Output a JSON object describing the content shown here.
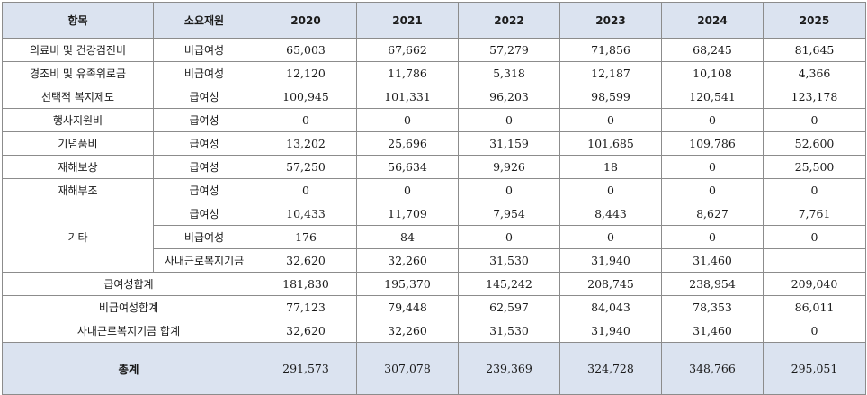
{
  "table": {
    "headers": [
      "항목",
      "소요재원",
      "2020",
      "2021",
      "2022",
      "2023",
      "2024",
      "2025"
    ],
    "rows": [
      {
        "item": "의료비 및 건강검진비",
        "source": "비급여성",
        "values": [
          "65,003",
          "67,662",
          "57,279",
          "71,856",
          "68,245",
          "81,645"
        ]
      },
      {
        "item": "경조비 및 유족위로금",
        "source": "비급여성",
        "values": [
          "12,120",
          "11,786",
          "5,318",
          "12,187",
          "10,108",
          "4,366"
        ]
      },
      {
        "item": "선택적 복지제도",
        "source": "급여성",
        "values": [
          "100,945",
          "101,331",
          "96,203",
          "98,599",
          "120,541",
          "123,178"
        ]
      },
      {
        "item": "행사지원비",
        "source": "급여성",
        "values": [
          "0",
          "0",
          "0",
          "0",
          "0",
          "0"
        ]
      },
      {
        "item": "기념품비",
        "source": "급여성",
        "values": [
          "13,202",
          "25,696",
          "31,159",
          "101,685",
          "109,786",
          "52,600"
        ]
      },
      {
        "item": "재해보상",
        "source": "급여성",
        "values": [
          "57,250",
          "56,634",
          "9,926",
          "18",
          "0",
          "25,500"
        ]
      },
      {
        "item": "재해부조",
        "source": "급여성",
        "values": [
          "0",
          "0",
          "0",
          "0",
          "0",
          "0"
        ]
      }
    ],
    "etc": {
      "item": "기타",
      "rows": [
        {
          "source": "급여성",
          "values": [
            "10,433",
            "11,709",
            "7,954",
            "8,443",
            "8,627",
            "7,761"
          ]
        },
        {
          "source": "비급여성",
          "values": [
            "176",
            "84",
            "0",
            "0",
            "0",
            "0"
          ]
        },
        {
          "source": "사내근로복지기금",
          "values": [
            "32,620",
            "32,260",
            "31,530",
            "31,940",
            "31,460",
            ""
          ]
        }
      ]
    },
    "subtotals": [
      {
        "label": "급여성합계",
        "values": [
          "181,830",
          "195,370",
          "145,242",
          "208,745",
          "238,954",
          "209,040"
        ]
      },
      {
        "label": "비급여성합계",
        "values": [
          "77,123",
          "79,448",
          "62,597",
          "84,043",
          "78,353",
          "86,011"
        ]
      },
      {
        "label": "사내근로복지기금 합계",
        "values": [
          "32,620",
          "32,260",
          "31,530",
          "31,940",
          "31,460",
          "0"
        ]
      }
    ],
    "grand_total": {
      "label": "총계",
      "values": [
        "291,573",
        "307,078",
        "239,369",
        "324,728",
        "348,766",
        "295,051"
      ]
    },
    "colors": {
      "header_bg": "#dbe3f0",
      "border": "#8c8c8c"
    }
  }
}
